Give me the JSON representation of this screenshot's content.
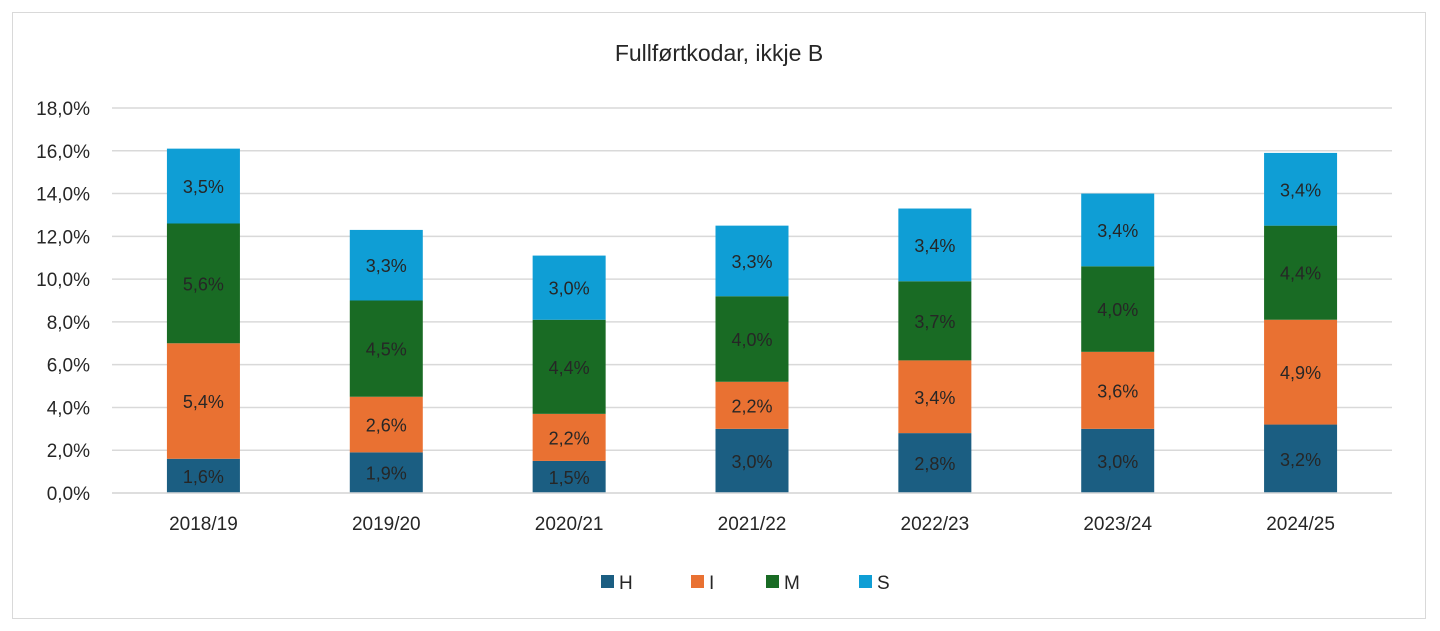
{
  "chart_data": {
    "type": "bar",
    "stacked": true,
    "title": "Fullførtkodar, ikkje B",
    "xlabel": "",
    "ylabel": "",
    "ylim": [
      0,
      18
    ],
    "y_ticks": [
      "0,0%",
      "2,0%",
      "4,0%",
      "6,0%",
      "8,0%",
      "10,0%",
      "12,0%",
      "14,0%",
      "16,0%",
      "18,0%"
    ],
    "y_tick_values": [
      0,
      2,
      4,
      6,
      8,
      10,
      12,
      14,
      16,
      18
    ],
    "grid": true,
    "legend_position": "bottom",
    "categories": [
      "2018/19",
      "2019/20",
      "2020/21",
      "2021/22",
      "2022/23",
      "2023/24",
      "2024/25"
    ],
    "series": [
      {
        "name": "H",
        "color": "#1b5e82",
        "values": [
          1.6,
          1.9,
          1.5,
          3.0,
          2.8,
          3.0,
          3.2
        ],
        "labels": [
          "1,6%",
          "1,9%",
          "1,5%",
          "3,0%",
          "2,8%",
          "3,0%",
          "3,2%"
        ]
      },
      {
        "name": "I",
        "color": "#e97132",
        "values": [
          5.4,
          2.6,
          2.2,
          2.2,
          3.4,
          3.6,
          4.9
        ],
        "labels": [
          "5,4%",
          "2,6%",
          "2,2%",
          "2,2%",
          "3,4%",
          "3,6%",
          "4,9%"
        ]
      },
      {
        "name": "M",
        "color": "#196b24",
        "values": [
          5.6,
          4.5,
          4.4,
          4.0,
          3.7,
          4.0,
          4.4
        ],
        "labels": [
          "5,6%",
          "4,5%",
          "4,4%",
          "4,0%",
          "3,7%",
          "4,0%",
          "4,4%"
        ]
      },
      {
        "name": "S",
        "color": "#0f9ed5",
        "values": [
          3.5,
          3.3,
          3.0,
          3.3,
          3.4,
          3.4,
          3.4
        ],
        "labels": [
          "3,5%",
          "3,3%",
          "3,0%",
          "3,3%",
          "3,4%",
          "3,4%",
          "3,4%"
        ]
      }
    ]
  }
}
